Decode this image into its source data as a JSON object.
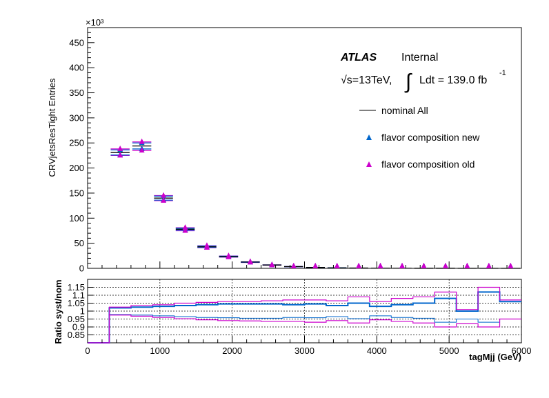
{
  "chart_data": [
    {
      "type": "scatter",
      "panel": "main",
      "ylabel": "CRVjetsResTight Entries",
      "y_multiplier_label": "×10³",
      "ylim": [
        0,
        480
      ],
      "yticks": [
        "0",
        "50",
        "100",
        "150",
        "200",
        "250",
        "300",
        "350",
        "400",
        "450"
      ],
      "yticks_values": [
        0,
        50,
        100,
        150,
        200,
        250,
        300,
        350,
        400,
        450
      ],
      "xlim": [
        0,
        6000
      ],
      "bin_edges": [
        0,
        300,
        600,
        900,
        1200,
        1500,
        1800,
        2100,
        2400,
        2700,
        3000,
        3300,
        3600,
        3900,
        4200,
        4500,
        4800,
        5100,
        5400,
        5700,
        6000
      ],
      "series": [
        {
          "name": "nominal All",
          "color": "#000000",
          "style": "line",
          "values": [
            0,
            231,
            244,
            140,
            78,
            43,
            23.5,
            12.5,
            6.6,
            3.4,
            1.8,
            1.0,
            0.6,
            0.35,
            0.2,
            0.12,
            0.08,
            0.05,
            0.03,
            0.02
          ]
        },
        {
          "name": "flavor composition new",
          "color": "#0066cc",
          "style": "triangle",
          "values_up": [
            0,
            236,
            250,
            144,
            80,
            44.5,
            24.2,
            12.9,
            6.8,
            3.5,
            1.9,
            1.05,
            0.62,
            0.36,
            0.21,
            0.12,
            0.08,
            0.05,
            0.03,
            0.02
          ],
          "values_down": [
            0,
            226,
            238,
            136,
            76,
            41.8,
            22.8,
            12.1,
            6.4,
            3.3,
            1.75,
            0.97,
            0.58,
            0.34,
            0.19,
            0.11,
            0.075,
            0.048,
            0.028,
            0.018
          ]
        },
        {
          "name": "flavor composition old",
          "color": "#cc00cc",
          "style": "triangle",
          "values_up": [
            0,
            238,
            252,
            145,
            81,
            45,
            24.5,
            13.1,
            6.9,
            3.6,
            1.9,
            1.06,
            0.63,
            0.37,
            0.21,
            0.13,
            0.085,
            0.052,
            0.035,
            0.022
          ],
          "values_down": [
            0,
            225,
            235,
            135,
            75,
            41.2,
            22.4,
            11.8,
            6.3,
            3.2,
            1.7,
            0.95,
            0.56,
            0.33,
            0.185,
            0.11,
            0.072,
            0.045,
            0.026,
            0.017
          ]
        }
      ]
    },
    {
      "type": "line",
      "panel": "ratio",
      "ylabel": "Ratio syst/nom",
      "xlabel": "tagMjj (GeV)",
      "ylim": [
        0.8,
        1.2
      ],
      "yticks": [
        "0.85",
        "0.9",
        "0.95",
        "1",
        "1.05",
        "1.1",
        "1.15"
      ],
      "yticks_values": [
        0.85,
        0.9,
        0.95,
        1,
        1.05,
        1.1,
        1.15
      ],
      "xlim": [
        0,
        6000
      ],
      "xticks": [
        "0",
        "1000",
        "2000",
        "3000",
        "4000",
        "5000",
        "6000"
      ],
      "xticks_values": [
        0,
        1000,
        2000,
        3000,
        4000,
        5000,
        6000
      ],
      "bin_edges": [
        0,
        300,
        600,
        900,
        1200,
        1500,
        1800,
        2100,
        2400,
        2700,
        3000,
        3300,
        3600,
        3900,
        4200,
        4500,
        4800,
        5100,
        5400,
        5700,
        6000
      ],
      "series": [
        {
          "name": "flavor composition new up",
          "color": "#0066cc",
          "width": 2,
          "values": [
            0.8,
            1.02,
            1.025,
            1.03,
            1.035,
            1.04,
            1.045,
            1.045,
            1.045,
            1.04,
            1.045,
            1.035,
            1.05,
            1.03,
            1.04,
            1.05,
            1.08,
            1.0,
            1.12,
            1.06
          ]
        },
        {
          "name": "flavor composition new down",
          "color": "#0066cc",
          "width": 1,
          "values": [
            0.8,
            0.978,
            0.975,
            0.97,
            0.965,
            0.96,
            0.958,
            0.955,
            0.955,
            0.96,
            0.958,
            0.965,
            0.952,
            0.97,
            0.96,
            0.955,
            0.93,
            0.95,
            0.93,
            0.95
          ]
        },
        {
          "name": "flavor composition old up",
          "color": "#cc00cc",
          "width": 1.2,
          "values": [
            0.8,
            1.025,
            1.035,
            1.04,
            1.05,
            1.055,
            1.06,
            1.06,
            1.065,
            1.07,
            1.07,
            1.065,
            1.09,
            1.06,
            1.08,
            1.09,
            1.12,
            1.01,
            1.15,
            1.07
          ]
        },
        {
          "name": "flavor composition old down",
          "color": "#cc00cc",
          "width": 1.2,
          "values": [
            0.8,
            0.975,
            0.968,
            0.96,
            0.952,
            0.945,
            0.94,
            0.938,
            0.935,
            0.935,
            0.93,
            0.94,
            0.925,
            0.945,
            0.935,
            0.925,
            0.9,
            0.92,
            0.9,
            0.95
          ]
        }
      ]
    }
  ],
  "atlas_label": {
    "experiment": "ATLAS",
    "status": "Internal",
    "energy_prefix": "√s=13TeV,",
    "integral": "∫",
    "lumi_text": "Ldt = 139.0 fb",
    "lumi_exp": "-1"
  },
  "legend": {
    "entries": [
      {
        "label": "nominal All",
        "marker": "line",
        "color": "#000000"
      },
      {
        "label": "flavor composition new",
        "marker": "triangle",
        "color": "#0066cc"
      },
      {
        "label": "flavor composition old",
        "marker": "triangle",
        "color": "#cc00cc"
      }
    ]
  }
}
